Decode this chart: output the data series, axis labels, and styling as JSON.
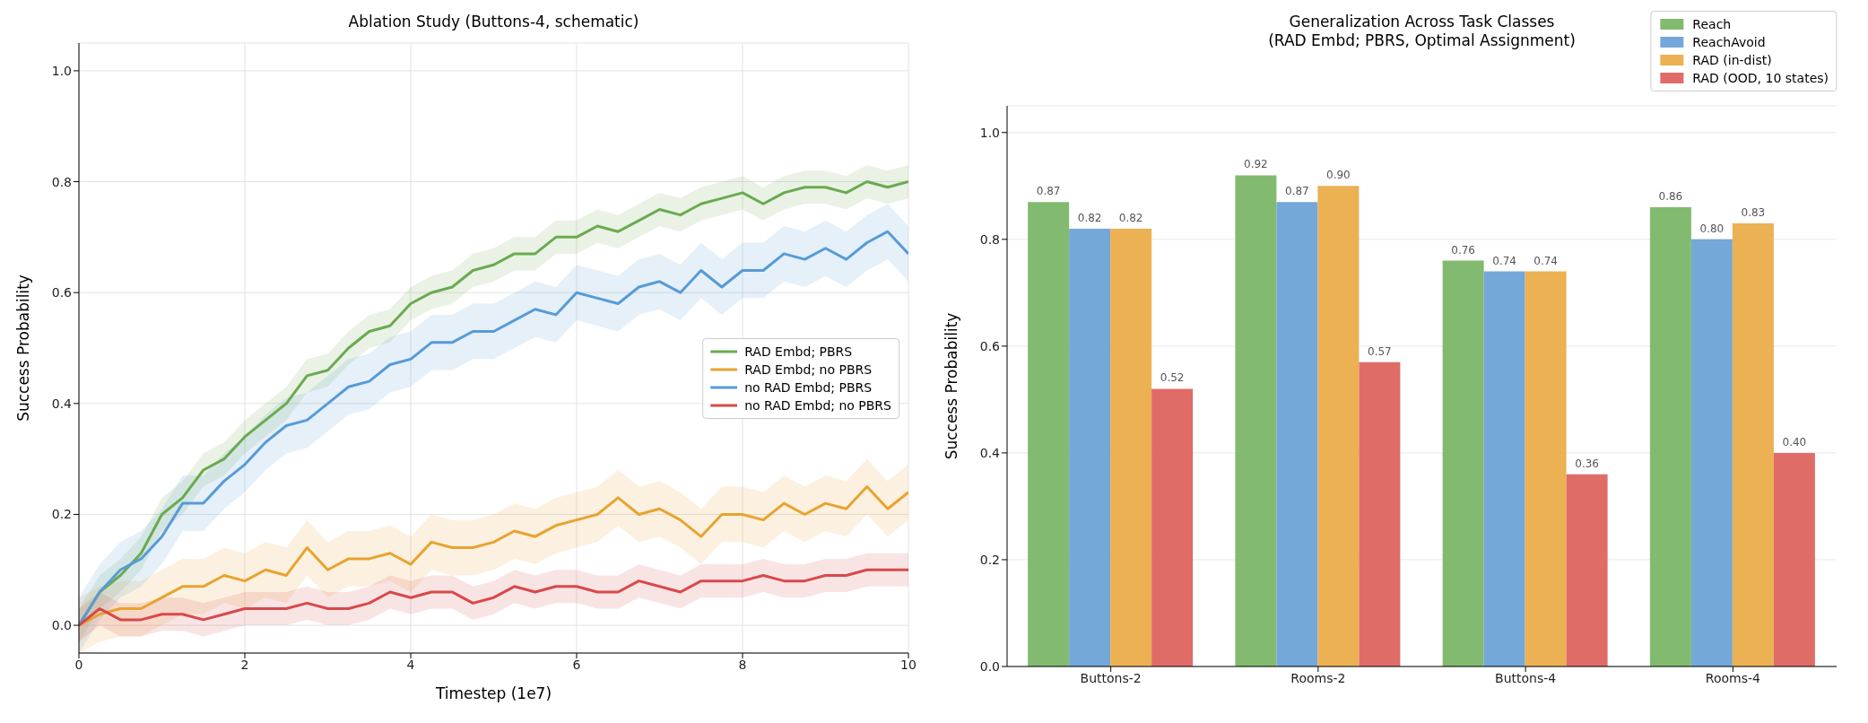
{
  "chart_data": [
    {
      "type": "line",
      "title": "Ablation Study (Buttons-4, schematic)",
      "xlabel": "Timestep (1e7)",
      "ylabel": "Success Probability",
      "xlim": [
        0,
        10
      ],
      "xticks": [
        0,
        2,
        4,
        6,
        8,
        10
      ],
      "ylim": [
        -0.05,
        1.05
      ],
      "yticks": [
        {
          "value": 0,
          "label": "0.0"
        },
        {
          "value": 0.2,
          "label": "0.2"
        },
        {
          "value": 0.4,
          "label": "0.4"
        },
        {
          "value": 0.6,
          "label": "0.6"
        },
        {
          "value": 0.8,
          "label": "0.8"
        },
        {
          "value": 1,
          "label": "1.0"
        }
      ],
      "grid": true,
      "legend": "right",
      "x": [
        0,
        0.25,
        0.5,
        0.75,
        1,
        1.25,
        1.5,
        1.75,
        2,
        2.25,
        2.5,
        2.75,
        3,
        3.25,
        3.5,
        3.75,
        4,
        4.25,
        4.5,
        4.75,
        5,
        5.25,
        5.5,
        5.75,
        6,
        6.25,
        6.5,
        6.75,
        7,
        7.25,
        7.5,
        7.75,
        8,
        8.25,
        8.5,
        8.75,
        9,
        9.25,
        9.5,
        9.75,
        10
      ],
      "series": [
        {
          "name": "RAD Embd; PBRS",
          "color": "#6aaa4f",
          "values": [
            0.0,
            0.06,
            0.09,
            0.13,
            0.2,
            0.23,
            0.28,
            0.3,
            0.34,
            0.37,
            0.4,
            0.45,
            0.46,
            0.5,
            0.53,
            0.54,
            0.58,
            0.6,
            0.61,
            0.64,
            0.65,
            0.67,
            0.67,
            0.7,
            0.7,
            0.72,
            0.71,
            0.73,
            0.75,
            0.74,
            0.76,
            0.77,
            0.78,
            0.76,
            0.78,
            0.79,
            0.79,
            0.78,
            0.8,
            0.79,
            0.8
          ],
          "lower": [
            -0.03,
            0.03,
            0.06,
            0.1,
            0.17,
            0.2,
            0.25,
            0.27,
            0.31,
            0.34,
            0.37,
            0.42,
            0.43,
            0.47,
            0.5,
            0.51,
            0.55,
            0.57,
            0.58,
            0.61,
            0.62,
            0.64,
            0.64,
            0.67,
            0.67,
            0.69,
            0.68,
            0.7,
            0.72,
            0.71,
            0.73,
            0.74,
            0.75,
            0.73,
            0.75,
            0.76,
            0.76,
            0.75,
            0.77,
            0.76,
            0.77
          ],
          "upper": [
            0.03,
            0.09,
            0.12,
            0.16,
            0.23,
            0.26,
            0.31,
            0.33,
            0.37,
            0.4,
            0.43,
            0.48,
            0.49,
            0.53,
            0.56,
            0.57,
            0.61,
            0.63,
            0.64,
            0.67,
            0.68,
            0.7,
            0.7,
            0.73,
            0.73,
            0.75,
            0.74,
            0.76,
            0.78,
            0.77,
            0.79,
            0.8,
            0.81,
            0.79,
            0.81,
            0.82,
            0.82,
            0.81,
            0.83,
            0.82,
            0.83
          ]
        },
        {
          "name": "RAD Embd; no PBRS",
          "color": "#e8a32f",
          "values": [
            0.0,
            0.02,
            0.03,
            0.03,
            0.05,
            0.07,
            0.07,
            0.09,
            0.08,
            0.1,
            0.09,
            0.14,
            0.1,
            0.12,
            0.12,
            0.13,
            0.11,
            0.15,
            0.14,
            0.14,
            0.15,
            0.17,
            0.16,
            0.18,
            0.19,
            0.2,
            0.23,
            0.2,
            0.21,
            0.19,
            0.16,
            0.2,
            0.2,
            0.19,
            0.22,
            0.2,
            0.22,
            0.21,
            0.25,
            0.21,
            0.24
          ],
          "lower": [
            -0.05,
            -0.03,
            -0.02,
            -0.02,
            0.0,
            0.02,
            0.02,
            0.04,
            0.03,
            0.05,
            0.04,
            0.09,
            0.05,
            0.07,
            0.07,
            0.08,
            0.06,
            0.1,
            0.09,
            0.09,
            0.1,
            0.12,
            0.11,
            0.13,
            0.14,
            0.15,
            0.18,
            0.15,
            0.16,
            0.14,
            0.11,
            0.15,
            0.15,
            0.14,
            0.17,
            0.15,
            0.17,
            0.16,
            0.2,
            0.16,
            0.19
          ],
          "upper": [
            0.05,
            0.07,
            0.08,
            0.08,
            0.1,
            0.12,
            0.12,
            0.14,
            0.13,
            0.15,
            0.14,
            0.19,
            0.15,
            0.17,
            0.17,
            0.18,
            0.16,
            0.2,
            0.19,
            0.19,
            0.2,
            0.22,
            0.21,
            0.23,
            0.24,
            0.25,
            0.28,
            0.25,
            0.26,
            0.24,
            0.21,
            0.25,
            0.25,
            0.24,
            0.27,
            0.25,
            0.27,
            0.26,
            0.3,
            0.26,
            0.29
          ]
        },
        {
          "name": "no RAD Embd; PBRS",
          "color": "#569bd8",
          "values": [
            0.0,
            0.06,
            0.1,
            0.12,
            0.16,
            0.22,
            0.22,
            0.26,
            0.29,
            0.33,
            0.36,
            0.37,
            0.4,
            0.43,
            0.44,
            0.47,
            0.48,
            0.51,
            0.51,
            0.53,
            0.53,
            0.55,
            0.57,
            0.56,
            0.6,
            0.59,
            0.58,
            0.61,
            0.62,
            0.6,
            0.64,
            0.61,
            0.64,
            0.64,
            0.67,
            0.66,
            0.68,
            0.66,
            0.69,
            0.71,
            0.67
          ],
          "lower": [
            -0.05,
            0.01,
            0.05,
            0.07,
            0.11,
            0.17,
            0.17,
            0.21,
            0.24,
            0.28,
            0.31,
            0.32,
            0.35,
            0.38,
            0.39,
            0.42,
            0.43,
            0.46,
            0.46,
            0.48,
            0.48,
            0.5,
            0.52,
            0.51,
            0.55,
            0.54,
            0.53,
            0.56,
            0.57,
            0.55,
            0.59,
            0.56,
            0.59,
            0.59,
            0.62,
            0.61,
            0.63,
            0.61,
            0.64,
            0.66,
            0.62
          ],
          "upper": [
            0.05,
            0.11,
            0.15,
            0.17,
            0.21,
            0.27,
            0.27,
            0.31,
            0.34,
            0.38,
            0.41,
            0.42,
            0.45,
            0.48,
            0.49,
            0.52,
            0.53,
            0.56,
            0.56,
            0.58,
            0.58,
            0.6,
            0.62,
            0.61,
            0.65,
            0.64,
            0.63,
            0.66,
            0.67,
            0.65,
            0.69,
            0.66,
            0.69,
            0.69,
            0.72,
            0.71,
            0.73,
            0.71,
            0.74,
            0.76,
            0.72
          ]
        },
        {
          "name": "no RAD Embd; no PBRS",
          "color": "#d9484a",
          "values": [
            0.0,
            0.03,
            0.01,
            0.01,
            0.02,
            0.02,
            0.01,
            0.02,
            0.03,
            0.03,
            0.03,
            0.04,
            0.03,
            0.03,
            0.04,
            0.06,
            0.05,
            0.06,
            0.06,
            0.04,
            0.05,
            0.07,
            0.06,
            0.07,
            0.07,
            0.06,
            0.06,
            0.08,
            0.07,
            0.06,
            0.08,
            0.08,
            0.08,
            0.09,
            0.08,
            0.08,
            0.09,
            0.09,
            0.1,
            0.1,
            0.1
          ],
          "lower": [
            -0.03,
            0.0,
            -0.02,
            -0.02,
            -0.01,
            -0.01,
            -0.02,
            -0.01,
            0.0,
            0.0,
            0.0,
            0.01,
            0.0,
            0.0,
            0.01,
            0.03,
            0.02,
            0.03,
            0.03,
            0.01,
            0.02,
            0.04,
            0.03,
            0.04,
            0.04,
            0.03,
            0.03,
            0.05,
            0.04,
            0.03,
            0.05,
            0.05,
            0.05,
            0.06,
            0.05,
            0.05,
            0.06,
            0.06,
            0.07,
            0.07,
            0.07
          ],
          "upper": [
            0.03,
            0.06,
            0.04,
            0.04,
            0.05,
            0.05,
            0.04,
            0.05,
            0.06,
            0.06,
            0.06,
            0.07,
            0.06,
            0.06,
            0.07,
            0.09,
            0.08,
            0.09,
            0.09,
            0.07,
            0.08,
            0.1,
            0.09,
            0.1,
            0.1,
            0.09,
            0.09,
            0.11,
            0.1,
            0.09,
            0.11,
            0.11,
            0.11,
            0.12,
            0.11,
            0.11,
            0.12,
            0.12,
            0.13,
            0.13,
            0.13
          ]
        }
      ]
    },
    {
      "type": "bar",
      "title": "Generalization Across Task Classes\n(RAD Embd; PBRS, Optimal Assignment)",
      "ylabel": "Success Probability",
      "categories": [
        "Buttons-2",
        "Rooms-2",
        "Buttons-4",
        "Rooms-4"
      ],
      "ylim": [
        0,
        1.05
      ],
      "yticks": [
        {
          "value": 0,
          "label": "0.0"
        },
        {
          "value": 0.2,
          "label": "0.2"
        },
        {
          "value": 0.4,
          "label": "0.4"
        },
        {
          "value": 0.6,
          "label": "0.6"
        },
        {
          "value": 0.8,
          "label": "0.8"
        },
        {
          "value": 1,
          "label": "1.0"
        }
      ],
      "grid": "y",
      "legend": "top right",
      "series": [
        {
          "name": "Reach",
          "color": "#82bb6f",
          "values": [
            0.87,
            0.92,
            0.76,
            0.86
          ],
          "value_labels": [
            "0.87",
            "0.92",
            "0.76",
            "0.86"
          ]
        },
        {
          "name": "ReachAvoid",
          "color": "#73a8d9",
          "values": [
            0.82,
            0.87,
            0.74,
            0.8
          ],
          "value_labels": [
            "0.82",
            "0.87",
            "0.74",
            "0.80"
          ]
        },
        {
          "name": "RAD (in-dist)",
          "color": "#ebb152",
          "values": [
            0.82,
            0.9,
            0.74,
            0.83
          ],
          "value_labels": [
            "0.82",
            "0.90",
            "0.74",
            "0.83"
          ]
        },
        {
          "name": "RAD (OOD, 10 states)",
          "color": "#e06c68",
          "values": [
            0.52,
            0.57,
            0.36,
            0.4
          ],
          "value_labels": [
            "0.52",
            "0.57",
            "0.36",
            "0.40"
          ]
        }
      ]
    }
  ]
}
